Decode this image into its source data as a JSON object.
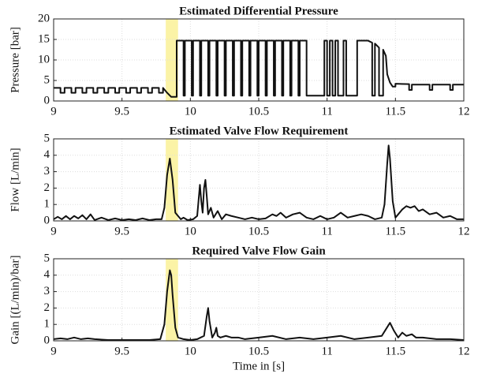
{
  "chart_data": [
    {
      "type": "line",
      "title": "Estimated Differential Pressure",
      "ylabel": "Pressure [bar]",
      "xlim": [
        9,
        12
      ],
      "xticks": [
        9,
        9.5,
        10,
        10.5,
        11,
        11.5,
        12
      ],
      "ylim": [
        0,
        20
      ],
      "yticks": [
        0,
        5,
        10,
        15,
        20
      ],
      "grid": true,
      "color": "#111111",
      "highlight": {
        "x": [
          9.82,
          9.91
        ],
        "color": "#fbf3a6"
      },
      "x": [
        9,
        9.05,
        9.05,
        9.08,
        9.08,
        9.13,
        9.13,
        9.16,
        9.16,
        9.21,
        9.21,
        9.24,
        9.24,
        9.29,
        9.29,
        9.32,
        9.32,
        9.37,
        9.37,
        9.4,
        9.4,
        9.45,
        9.45,
        9.48,
        9.48,
        9.53,
        9.53,
        9.56,
        9.56,
        9.61,
        9.61,
        9.64,
        9.64,
        9.69,
        9.69,
        9.72,
        9.72,
        9.77,
        9.77,
        9.8,
        9.8,
        9.83,
        9.86,
        9.9,
        9.9,
        9.95,
        9.95,
        9.96,
        9.96,
        10.01,
        10.01,
        10.02,
        10.02,
        10.07,
        10.07,
        10.08,
        10.08,
        10.13,
        10.13,
        10.14,
        10.14,
        10.19,
        10.19,
        10.2,
        10.2,
        10.25,
        10.25,
        10.26,
        10.26,
        10.31,
        10.31,
        10.32,
        10.32,
        10.37,
        10.37,
        10.38,
        10.38,
        10.43,
        10.43,
        10.44,
        10.44,
        10.49,
        10.49,
        10.5,
        10.5,
        10.55,
        10.55,
        10.56,
        10.56,
        10.61,
        10.61,
        10.62,
        10.62,
        10.67,
        10.67,
        10.68,
        10.68,
        10.73,
        10.73,
        10.74,
        10.74,
        10.79,
        10.79,
        10.8,
        10.8,
        10.85,
        10.85,
        10.98,
        10.98,
        11.0,
        11.0,
        11.02,
        11.02,
        11.04,
        11.04,
        11.06,
        11.06,
        11.08,
        11.08,
        11.12,
        11.12,
        11.14,
        11.14,
        11.22,
        11.22,
        11.3,
        11.33,
        11.33,
        11.35,
        11.35,
        11.38,
        11.38,
        11.41,
        11.41,
        11.43,
        11.44,
        11.46,
        11.48,
        11.5,
        11.5,
        11.6,
        11.6,
        11.62,
        11.62,
        11.75,
        11.75,
        11.77,
        11.77,
        11.9,
        11.9,
        11.92,
        11.92,
        12
      ],
      "values": [
        3.2,
        3.2,
        2,
        2,
        3.2,
        3.2,
        2,
        2,
        3.2,
        3.2,
        2,
        2,
        3.2,
        3.2,
        2,
        2,
        3.2,
        3.2,
        2,
        2,
        3.2,
        3.2,
        2,
        2,
        3.2,
        3.2,
        2,
        2,
        3.2,
        3.2,
        2,
        2,
        3.2,
        3.2,
        2,
        2,
        3.2,
        3.2,
        2,
        2,
        3.2,
        2,
        1.0,
        1.0,
        14.7,
        14.7,
        1.3,
        1.3,
        14.7,
        14.7,
        1.3,
        1.3,
        14.7,
        14.7,
        1.3,
        1.3,
        14.7,
        14.7,
        1.3,
        1.3,
        14.7,
        14.7,
        1.3,
        1.3,
        14.7,
        14.7,
        1.3,
        1.3,
        14.7,
        14.7,
        1.3,
        1.3,
        14.7,
        14.7,
        1.3,
        1.3,
        14.7,
        14.7,
        1.3,
        1.3,
        14.7,
        14.7,
        1.3,
        1.3,
        14.7,
        14.7,
        1.3,
        1.3,
        14.7,
        14.7,
        1.3,
        1.3,
        14.7,
        14.7,
        1.3,
        1.3,
        14.7,
        14.7,
        1.3,
        1.3,
        14.7,
        14.7,
        1.3,
        1.3,
        14.7,
        14.7,
        1.3,
        1.3,
        14.7,
        14.7,
        1.3,
        1.3,
        14.7,
        14.7,
        1.3,
        1.3,
        14.7,
        14.7,
        1.3,
        1.3,
        14.7,
        14.7,
        1.3,
        1.3,
        14.7,
        14.7,
        14.2,
        1.3,
        1.3,
        14.0,
        13.0,
        1.3,
        1.3,
        12.5,
        11.0,
        6.5,
        4.5,
        3.5,
        3.5,
        4.2,
        4.1,
        2.7,
        2.7,
        4.0,
        4.0,
        2.7,
        2.7,
        4.0,
        4.0,
        2.7,
        2.7,
        4.0,
        4.0
      ]
    },
    {
      "type": "line",
      "title": "Estimated Valve Flow Requirement",
      "ylabel": "Flow [L/min]",
      "xlim": [
        9,
        12
      ],
      "xticks": [
        9,
        9.5,
        10,
        10.5,
        11,
        11.5,
        12
      ],
      "ylim": [
        0,
        5
      ],
      "yticks": [
        0,
        1,
        2,
        3,
        4,
        5
      ],
      "grid": true,
      "color": "#111111",
      "highlight": {
        "x": [
          9.82,
          9.91
        ],
        "color": "#fbf3a6"
      },
      "x": [
        9,
        9.03,
        9.06,
        9.09,
        9.12,
        9.15,
        9.18,
        9.21,
        9.24,
        9.27,
        9.3,
        9.35,
        9.4,
        9.45,
        9.5,
        9.55,
        9.6,
        9.65,
        9.7,
        9.75,
        9.79,
        9.81,
        9.83,
        9.85,
        9.87,
        9.89,
        9.91,
        9.93,
        9.95,
        9.98,
        10.02,
        10.05,
        10.07,
        10.08,
        10.09,
        10.1,
        10.11,
        10.12,
        10.13,
        10.15,
        10.17,
        10.2,
        10.23,
        10.26,
        10.3,
        10.35,
        10.4,
        10.45,
        10.5,
        10.55,
        10.6,
        10.63,
        10.66,
        10.7,
        10.75,
        10.8,
        10.85,
        10.9,
        10.95,
        11.0,
        11.05,
        11.1,
        11.15,
        11.2,
        11.25,
        11.3,
        11.35,
        11.4,
        11.42,
        11.44,
        11.45,
        11.46,
        11.48,
        11.5,
        11.52,
        11.55,
        11.58,
        11.61,
        11.64,
        11.67,
        11.7,
        11.75,
        11.8,
        11.85,
        11.9,
        11.95,
        12.0
      ],
      "values": [
        0.1,
        0.25,
        0.1,
        0.3,
        0.1,
        0.3,
        0.15,
        0.35,
        0.1,
        0.4,
        0.05,
        0.2,
        0.05,
        0.15,
        0.05,
        0.1,
        0.05,
        0.15,
        0.05,
        0.1,
        0.1,
        0.8,
        2.8,
        3.8,
        2.5,
        0.5,
        0.3,
        0.1,
        0.2,
        0.05,
        0.1,
        0.3,
        2.2,
        1.2,
        0.5,
        2.0,
        2.5,
        1.5,
        0.4,
        0.8,
        0.2,
        0.6,
        0.1,
        0.4,
        0.3,
        0.2,
        0.1,
        0.2,
        0.1,
        0.15,
        0.4,
        0.3,
        0.5,
        0.2,
        0.4,
        0.5,
        0.2,
        0.1,
        0.3,
        0.1,
        0.2,
        0.5,
        0.2,
        0.3,
        0.4,
        0.3,
        0.1,
        0.2,
        1.0,
        3.5,
        4.6,
        3.8,
        1.2,
        0.2,
        0.4,
        0.7,
        0.9,
        0.8,
        0.9,
        0.6,
        0.7,
        0.4,
        0.5,
        0.2,
        0.3,
        0.1,
        0.1
      ]
    },
    {
      "type": "line",
      "title": "Required Valve Flow Gain",
      "ylabel": "Gain [(L/min)/bar]",
      "xlabel": "Time in [s]",
      "xlim": [
        9,
        12
      ],
      "xticks": [
        9,
        9.5,
        10,
        10.5,
        11,
        11.5,
        12
      ],
      "ylim": [
        0,
        5
      ],
      "yticks": [
        0,
        1,
        2,
        3,
        4,
        5
      ],
      "grid": true,
      "color": "#111111",
      "highlight": {
        "x": [
          9.82,
          9.91
        ],
        "color": "#fbf3a6"
      },
      "x": [
        9,
        9.05,
        9.1,
        9.15,
        9.2,
        9.25,
        9.3,
        9.4,
        9.5,
        9.6,
        9.7,
        9.78,
        9.81,
        9.83,
        9.85,
        9.86,
        9.87,
        9.89,
        9.91,
        9.95,
        10.0,
        10.05,
        10.1,
        10.12,
        10.13,
        10.14,
        10.16,
        10.18,
        10.19,
        10.2,
        10.22,
        10.26,
        10.3,
        10.35,
        10.4,
        10.5,
        10.6,
        10.7,
        10.8,
        10.9,
        11.0,
        11.1,
        11.2,
        11.3,
        11.4,
        11.43,
        11.46,
        11.49,
        11.52,
        11.55,
        11.58,
        11.62,
        11.65,
        11.7,
        11.8,
        11.9,
        12.0
      ],
      "values": [
        0.1,
        0.15,
        0.1,
        0.2,
        0.1,
        0.15,
        0.1,
        0.05,
        0.05,
        0.05,
        0.05,
        0.1,
        1.0,
        3.0,
        4.3,
        4.0,
        2.8,
        0.8,
        0.2,
        0.1,
        0.05,
        0.1,
        0.3,
        1.5,
        2.0,
        1.2,
        0.2,
        0.5,
        0.8,
        0.3,
        0.2,
        0.3,
        0.2,
        0.2,
        0.1,
        0.2,
        0.3,
        0.1,
        0.2,
        0.1,
        0.2,
        0.3,
        0.1,
        0.2,
        0.3,
        0.7,
        1.1,
        0.6,
        0.2,
        0.5,
        0.3,
        0.4,
        0.2,
        0.2,
        0.1,
        0.1,
        0.05
      ]
    }
  ]
}
